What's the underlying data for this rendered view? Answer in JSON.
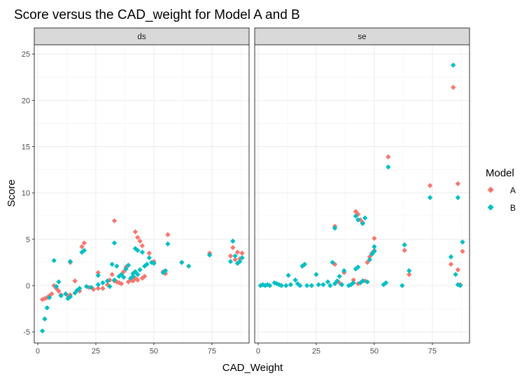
{
  "chart_data": {
    "type": "scatter",
    "title": "Score versus the CAD_weight for Model A and B",
    "xlabel": "CAD_Weight",
    "ylabel": "Score",
    "xlim": [
      -1.5,
      91
    ],
    "ylim": [
      -6.2,
      26
    ],
    "xticks": [
      0,
      25,
      50,
      75
    ],
    "yticks": [
      -5,
      0,
      5,
      10,
      15,
      20,
      25
    ],
    "grid": true,
    "legend": {
      "title": "Model",
      "placement": "right",
      "entries": [
        {
          "label": "A",
          "color": "#F8766D"
        },
        {
          "label": "B",
          "color": "#00BFC4"
        }
      ]
    },
    "facets": [
      {
        "label": "ds",
        "series": [
          {
            "name": "A",
            "color": "#F8766D",
            "points": [
              [
                2,
                -1.5
              ],
              [
                3,
                -1.4
              ],
              [
                4,
                -1.3
              ],
              [
                5,
                -1.1
              ],
              [
                6,
                -0.9
              ],
              [
                7,
                0
              ],
              [
                8,
                -0.3
              ],
              [
                9,
                -0.6
              ],
              [
                10,
                -1.0
              ],
              [
                13,
                -1.1
              ],
              [
                14,
                -1.0
              ],
              [
                14,
                2.5
              ],
              [
                16,
                0.5
              ],
              [
                18,
                -0.6
              ],
              [
                19,
                4.2
              ],
              [
                20,
                4.6
              ],
              [
                22,
                -0.2
              ],
              [
                24,
                -0.4
              ],
              [
                26,
                -0.3
              ],
              [
                26,
                1.4
              ],
              [
                28,
                -0.3
              ],
              [
                30,
                0.1
              ],
              [
                31,
                0.6
              ],
              [
                32,
                1.2
              ],
              [
                33,
                7.0
              ],
              [
                33,
                0.5
              ],
              [
                34,
                0.4
              ],
              [
                35,
                0.3
              ],
              [
                36,
                0.2
              ],
              [
                37,
                1.5
              ],
              [
                38,
                2.0
              ],
              [
                39,
                0.4
              ],
              [
                40,
                0.6
              ],
              [
                41,
                0.5
              ],
              [
                42,
                5.8
              ],
              [
                42,
                0.8
              ],
              [
                43,
                5.2
              ],
              [
                43,
                0.6
              ],
              [
                44,
                4.8
              ],
              [
                45,
                4.3
              ],
              [
                45,
                0.8
              ],
              [
                46,
                1.0
              ],
              [
                48,
                3.5
              ],
              [
                50,
                2.6
              ],
              [
                54,
                1.5
              ],
              [
                55,
                1.3
              ],
              [
                56,
                5.5
              ],
              [
                62,
                2.5
              ],
              [
                74,
                3.5
              ],
              [
                83,
                3.2
              ],
              [
                84,
                4.1
              ],
              [
                85,
                2.8
              ],
              [
                86,
                3.6
              ],
              [
                87,
                2.9
              ],
              [
                88,
                3.5
              ]
            ]
          },
          {
            "name": "B",
            "color": "#00BFC4",
            "points": [
              [
                2,
                -4.9
              ],
              [
                3,
                -3.6
              ],
              [
                4,
                -2.4
              ],
              [
                5,
                -1.3
              ],
              [
                7,
                2.7
              ],
              [
                8,
                -0.1
              ],
              [
                9,
                0.4
              ],
              [
                10,
                -1.1
              ],
              [
                12,
                -0.9
              ],
              [
                13,
                -1.4
              ],
              [
                14,
                -1.2
              ],
              [
                14,
                2.6
              ],
              [
                16,
                -0.8
              ],
              [
                17,
                -0.5
              ],
              [
                18,
                -0.3
              ],
              [
                19,
                3.6
              ],
              [
                20,
                3.8
              ],
              [
                21,
                -0.1
              ],
              [
                23,
                -0.2
              ],
              [
                26,
                1.1
              ],
              [
                26,
                0.1
              ],
              [
                28,
                0.3
              ],
              [
                30,
                0.5
              ],
              [
                31,
                -0.1
              ],
              [
                32,
                2.3
              ],
              [
                33,
                4.6
              ],
              [
                33,
                0.6
              ],
              [
                34,
                2.1
              ],
              [
                35,
                1.0
              ],
              [
                36,
                1.2
              ],
              [
                37,
                0.9
              ],
              [
                38,
                1.8
              ],
              [
                39,
                2.2
              ],
              [
                40,
                0.8
              ],
              [
                41,
                1.0
              ],
              [
                41,
                1.3
              ],
              [
                42,
                4.0
              ],
              [
                42,
                1.5
              ],
              [
                43,
                1.2
              ],
              [
                43,
                3.8
              ],
              [
                44,
                1.7
              ],
              [
                45,
                3.6
              ],
              [
                46,
                2.1
              ],
              [
                47,
                2.3
              ],
              [
                48,
                3.0
              ],
              [
                49,
                2.5
              ],
              [
                50,
                2.4
              ],
              [
                54,
                1.4
              ],
              [
                55,
                1.6
              ],
              [
                56,
                4.5
              ],
              [
                62,
                2.5
              ],
              [
                65,
                2.1
              ],
              [
                74,
                3.3
              ],
              [
                83,
                2.6
              ],
              [
                84,
                4.8
              ],
              [
                85,
                3.2
              ],
              [
                86,
                2.4
              ],
              [
                87,
                2.6
              ],
              [
                88,
                3.0
              ]
            ]
          }
        ]
      },
      {
        "label": "se",
        "series": [
          {
            "name": "A",
            "color": "#F8766D",
            "points": [
              [
                33,
                6.4
              ],
              [
                33,
                2.3
              ],
              [
                35,
                0.3
              ],
              [
                37,
                1.4
              ],
              [
                41,
                0.6
              ],
              [
                42,
                8.0
              ],
              [
                43,
                7.7
              ],
              [
                43,
                0.2
              ],
              [
                44,
                7.1
              ],
              [
                45,
                6.8
              ],
              [
                46,
                0.5
              ],
              [
                47,
                2.5
              ],
              [
                48,
                3.1
              ],
              [
                49,
                3.5
              ],
              [
                50,
                5.1
              ],
              [
                50,
                3.8
              ],
              [
                56,
                13.9
              ],
              [
                63,
                3.8
              ],
              [
                65,
                1.2
              ],
              [
                74,
                10.8
              ],
              [
                83,
                2.3
              ],
              [
                84,
                21.4
              ],
              [
                86,
                11.0
              ],
              [
                86,
                1.7
              ],
              [
                87,
                0.1
              ],
              [
                88,
                3.7
              ]
            ]
          },
          {
            "name": "B",
            "color": "#00BFC4",
            "points": [
              [
                1,
                0
              ],
              [
                2,
                0.1
              ],
              [
                3,
                0
              ],
              [
                4,
                0.1
              ],
              [
                5,
                0
              ],
              [
                7,
                0.3
              ],
              [
                8,
                0.2
              ],
              [
                9,
                0.1
              ],
              [
                10,
                0
              ],
              [
                12,
                0
              ],
              [
                13,
                1.1
              ],
              [
                14,
                0.1
              ],
              [
                16,
                0.6
              ],
              [
                17,
                0.2
              ],
              [
                18,
                0
              ],
              [
                19,
                2.1
              ],
              [
                20,
                2.3
              ],
              [
                21,
                0
              ],
              [
                23,
                0
              ],
              [
                25,
                1.2
              ],
              [
                26,
                0.1
              ],
              [
                28,
                0.1
              ],
              [
                30,
                0.4
              ],
              [
                31,
                0
              ],
              [
                32,
                2.5
              ],
              [
                33,
                6.2
              ],
              [
                33,
                0.2
              ],
              [
                34,
                0.5
              ],
              [
                35,
                1.0
              ],
              [
                36,
                0.1
              ],
              [
                37,
                1.6
              ],
              [
                39,
                0
              ],
              [
                40,
                0.1
              ],
              [
                41,
                0.3
              ],
              [
                42,
                7.5
              ],
              [
                42,
                1.8
              ],
              [
                43,
                2.0
              ],
              [
                43,
                7.1
              ],
              [
                44,
                0.3
              ],
              [
                45,
                6.7
              ],
              [
                45,
                0.5
              ],
              [
                46,
                7.3
              ],
              [
                47,
                0.4
              ],
              [
                48,
                2.8
              ],
              [
                49,
                3.4
              ],
              [
                50,
                4.2
              ],
              [
                50,
                3.7
              ],
              [
                54,
                0.1
              ],
              [
                55,
                0.3
              ],
              [
                56,
                12.8
              ],
              [
                62,
                0
              ],
              [
                63,
                4.4
              ],
              [
                65,
                1.6
              ],
              [
                74,
                9.5
              ],
              [
                83,
                3.1
              ],
              [
                84,
                23.8
              ],
              [
                85,
                1.2
              ],
              [
                86,
                9.5
              ],
              [
                86,
                0.1
              ],
              [
                87,
                0
              ],
              [
                88,
                4.7
              ]
            ]
          }
        ]
      }
    ]
  }
}
